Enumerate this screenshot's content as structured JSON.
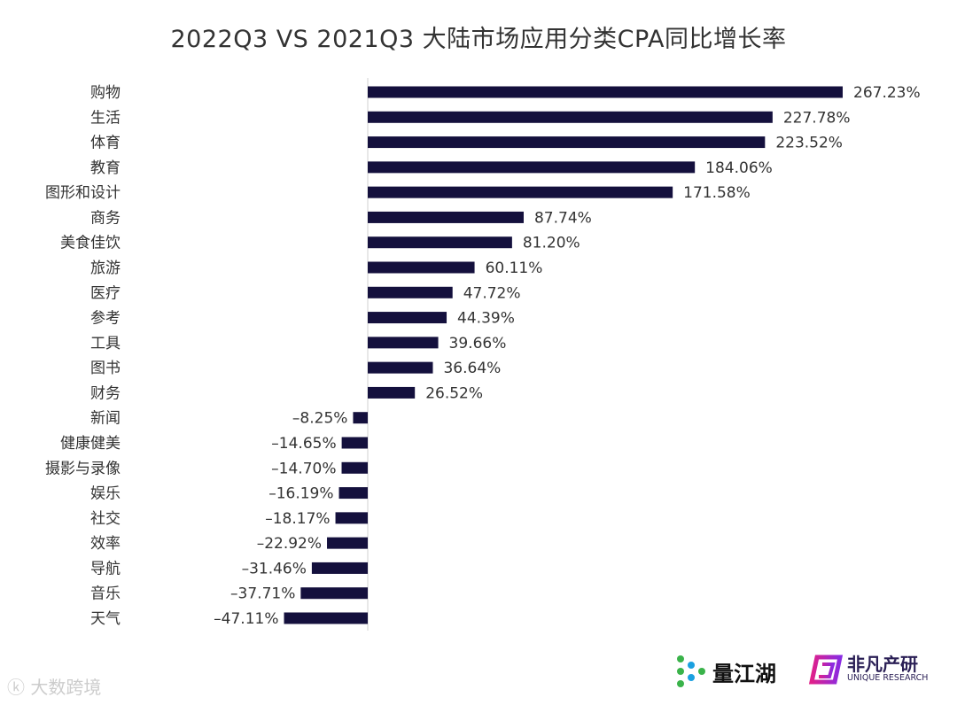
{
  "chart_data": {
    "type": "bar",
    "orientation": "horizontal",
    "title": "2022Q3 VS 2021Q3 大陆市场应用分类CPA同比增长率",
    "categories": [
      "购物",
      "生活",
      "体育",
      "教育",
      "图形和设计",
      "商务",
      "美食佳饮",
      "旅游",
      "医疗",
      "参考",
      "工具",
      "图书",
      "财务",
      "新闻",
      "健康健美",
      "摄影与录像",
      "娱乐",
      "社交",
      "效率",
      "导航",
      "音乐",
      "天气"
    ],
    "values": [
      267.23,
      227.78,
      223.52,
      184.06,
      171.58,
      87.74,
      81.2,
      60.11,
      47.72,
      44.39,
      39.66,
      36.64,
      26.52,
      -8.25,
      -14.65,
      -14.7,
      -16.19,
      -18.17,
      -22.92,
      -31.46,
      -37.71,
      -47.11
    ],
    "labels": [
      "267.23%",
      "227.78%",
      "223.52%",
      "184.06%",
      "171.58%",
      "87.74%",
      "81.20%",
      "60.11%",
      "47.72%",
      "44.39%",
      "39.66%",
      "36.64%",
      "26.52%",
      "–8.25%",
      "–14.65%",
      "–14.70%",
      "–16.19%",
      "–18.17%",
      "–22.92%",
      "–31.46%",
      "–37.71%",
      "–47.11%"
    ],
    "unit": "%",
    "grid": false,
    "bar_color": "#14103d"
  },
  "logos": {
    "left": "量江湖",
    "right_zh": "非凡产研",
    "right_en": "UNIQUE RESEARCH"
  },
  "watermark": "大数跨境"
}
